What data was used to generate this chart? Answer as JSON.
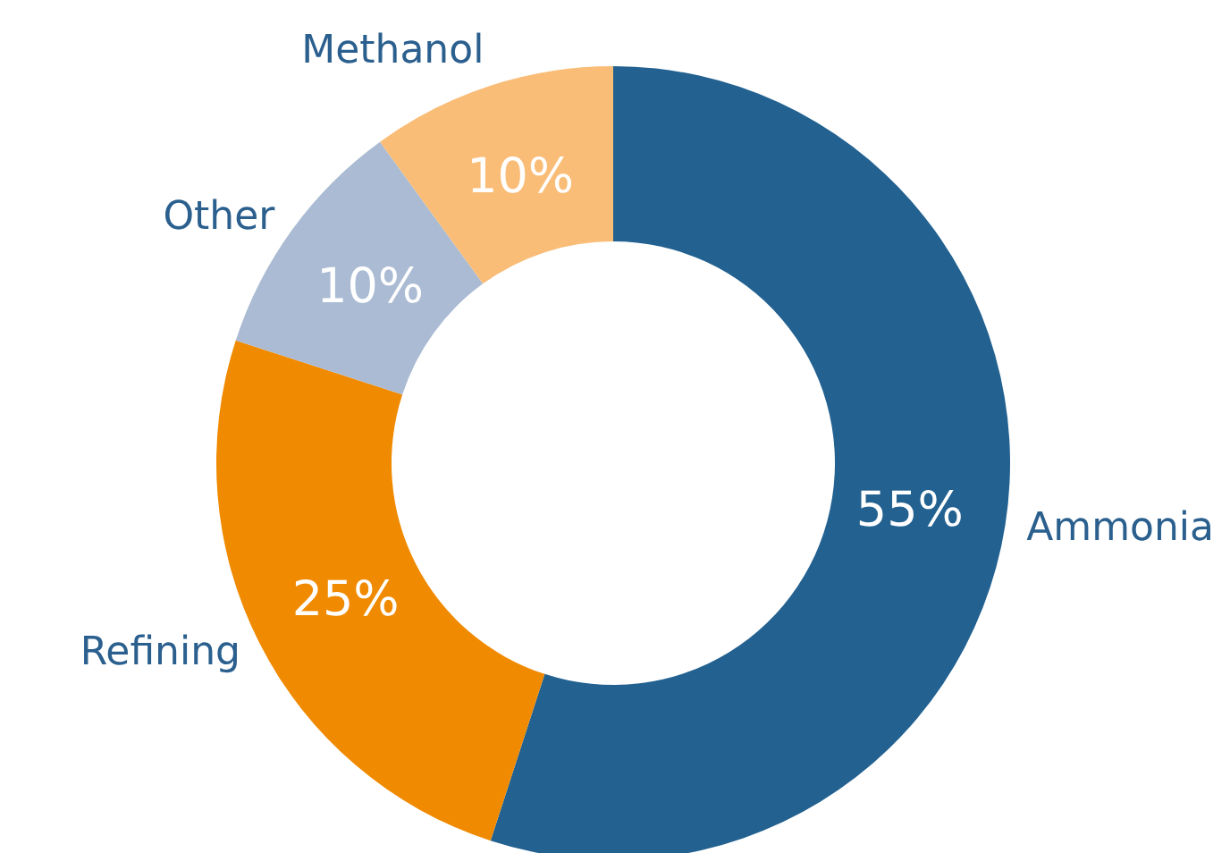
{
  "chart_data": {
    "type": "donut",
    "categories": [
      "Ammonia",
      "Refining",
      "Other",
      "Methanol"
    ],
    "values": [
      55,
      25,
      10,
      10
    ],
    "colors": [
      "#226190",
      "#f08a00",
      "#aabbd3",
      "#f9bd77"
    ],
    "value_labels": [
      "55%",
      "25%",
      "10%",
      "10%"
    ],
    "legend": false
  }
}
